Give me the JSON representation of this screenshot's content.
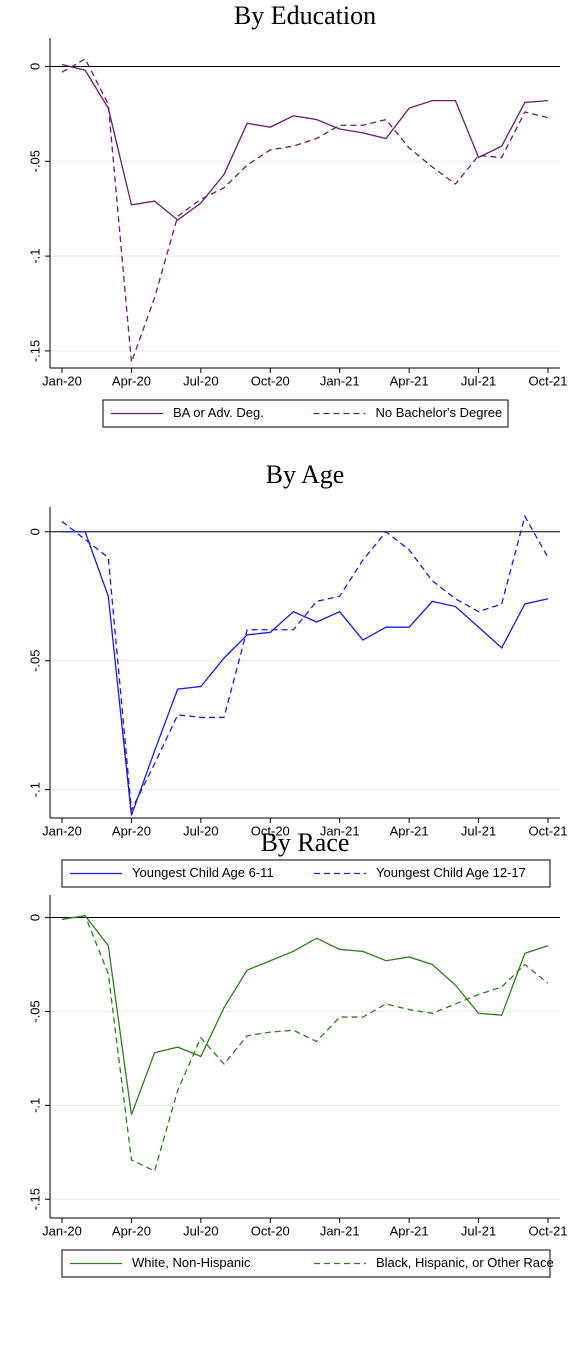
{
  "chart_data": [
    {
      "type": "line",
      "title": "By Education",
      "categories": [
        "Jan-20",
        null,
        null,
        "Apr-20",
        null,
        null,
        "Jul-20",
        null,
        null,
        "Oct-20",
        null,
        null,
        "Jan-21",
        null,
        null,
        "Apr-21",
        null,
        null,
        "Jul-21",
        null,
        null,
        "Oct-21"
      ],
      "series": [
        {
          "name": "BA or Adv. Deg.",
          "color": "#6b1d6e",
          "style": "solid",
          "values": [
            0.001,
            -0.002,
            -0.022,
            -0.073,
            -0.071,
            -0.081,
            -0.072,
            -0.057,
            -0.03,
            -0.032,
            -0.026,
            -0.028,
            -0.033,
            -0.035,
            -0.038,
            -0.022,
            -0.018,
            -0.018,
            -0.048,
            -0.042,
            -0.019,
            -0.018
          ]
        },
        {
          "name": "No Bachelor's Degree",
          "color": "#6b1d6e",
          "style": "dashed",
          "values": [
            -0.003,
            0.004,
            -0.02,
            -0.156,
            -0.122,
            -0.079,
            -0.07,
            -0.064,
            -0.052,
            -0.044,
            -0.042,
            -0.038,
            -0.031,
            -0.031,
            -0.028,
            -0.043,
            -0.053,
            -0.062,
            -0.047,
            -0.048,
            -0.024,
            -0.027
          ]
        }
      ],
      "ylim": [
        -0.159,
        0.015
      ],
      "yticks": [
        {
          "value": 0,
          "label": "0"
        },
        {
          "value": -0.05,
          "label": "-.05"
        },
        {
          "value": -0.1,
          "label": "-.1"
        },
        {
          "value": -0.15,
          "label": "-.15"
        }
      ],
      "grid": true
    },
    {
      "type": "line",
      "title": "By Age",
      "categories": [
        "Jan-20",
        null,
        null,
        "Apr-20",
        null,
        null,
        "Jul-20",
        null,
        null,
        "Oct-20",
        null,
        null,
        "Jan-21",
        null,
        null,
        "Apr-21",
        null,
        null,
        "Jul-21",
        null,
        null,
        "Oct-21"
      ],
      "series": [
        {
          "name": "Youngest Child Age 6-11",
          "color": "#1a1ae6",
          "style": "solid",
          "values": [
            0,
            0,
            -0.025,
            -0.11,
            -0.085,
            -0.061,
            -0.06,
            -0.049,
            -0.04,
            -0.039,
            -0.031,
            -0.035,
            -0.031,
            -0.042,
            -0.037,
            -0.037,
            -0.027,
            -0.029,
            -0.037,
            -0.045,
            -0.028,
            -0.026
          ]
        },
        {
          "name": "Youngest Child Age 12-17",
          "color": "#1a1ae6",
          "style": "dashed",
          "values": [
            0.004,
            -0.003,
            -0.01,
            -0.108,
            -0.09,
            -0.071,
            -0.072,
            -0.072,
            -0.038,
            -0.038,
            -0.038,
            -0.027,
            -0.025,
            -0.011,
            0,
            -0.007,
            -0.019,
            -0.026,
            -0.031,
            -0.028,
            0.006,
            -0.01
          ]
        }
      ],
      "ylim": [
        -0.111,
        0.0096
      ],
      "yticks": [
        {
          "value": 0,
          "label": "0"
        },
        {
          "value": -0.05,
          "label": "-.05"
        },
        {
          "value": -0.1,
          "label": "-.1"
        }
      ],
      "grid": true
    },
    {
      "type": "line",
      "title": "By Race",
      "categories": [
        "Jan-20",
        null,
        null,
        "Apr-20",
        null,
        null,
        "Jul-20",
        null,
        null,
        "Oct-20",
        null,
        null,
        "Jan-21",
        null,
        null,
        "Apr-21",
        null,
        null,
        "Jul-21",
        null,
        null,
        "Oct-21"
      ],
      "series": [
        {
          "name": "White, Non-Hispanic",
          "color": "#2e7d1e",
          "style": "solid",
          "values": [
            -0.001,
            0.001,
            -0.015,
            -0.105,
            -0.072,
            -0.069,
            -0.074,
            -0.048,
            -0.028,
            -0.023,
            -0.018,
            -0.011,
            -0.017,
            -0.018,
            -0.023,
            -0.021,
            -0.025,
            -0.036,
            -0.051,
            -0.052,
            -0.019,
            -0.015
          ]
        },
        {
          "name": "Black, Hispanic, or Other Race",
          "color": "#2e7d1e",
          "style": "dashed",
          "values": [
            -0.001,
            0.001,
            -0.03,
            -0.129,
            -0.135,
            -0.092,
            -0.064,
            -0.078,
            -0.063,
            -0.061,
            -0.06,
            -0.066,
            -0.053,
            -0.053,
            -0.046,
            -0.049,
            -0.051,
            -0.046,
            -0.041,
            -0.037,
            -0.025,
            -0.035
          ]
        }
      ],
      "ylim": [
        -0.16,
        0.012
      ],
      "yticks": [
        {
          "value": 0,
          "label": "0"
        },
        {
          "value": -0.05,
          "label": "-.05"
        },
        {
          "value": -0.1,
          "label": "-.1"
        },
        {
          "value": -0.15,
          "label": "-.15"
        }
      ],
      "grid": true
    }
  ]
}
